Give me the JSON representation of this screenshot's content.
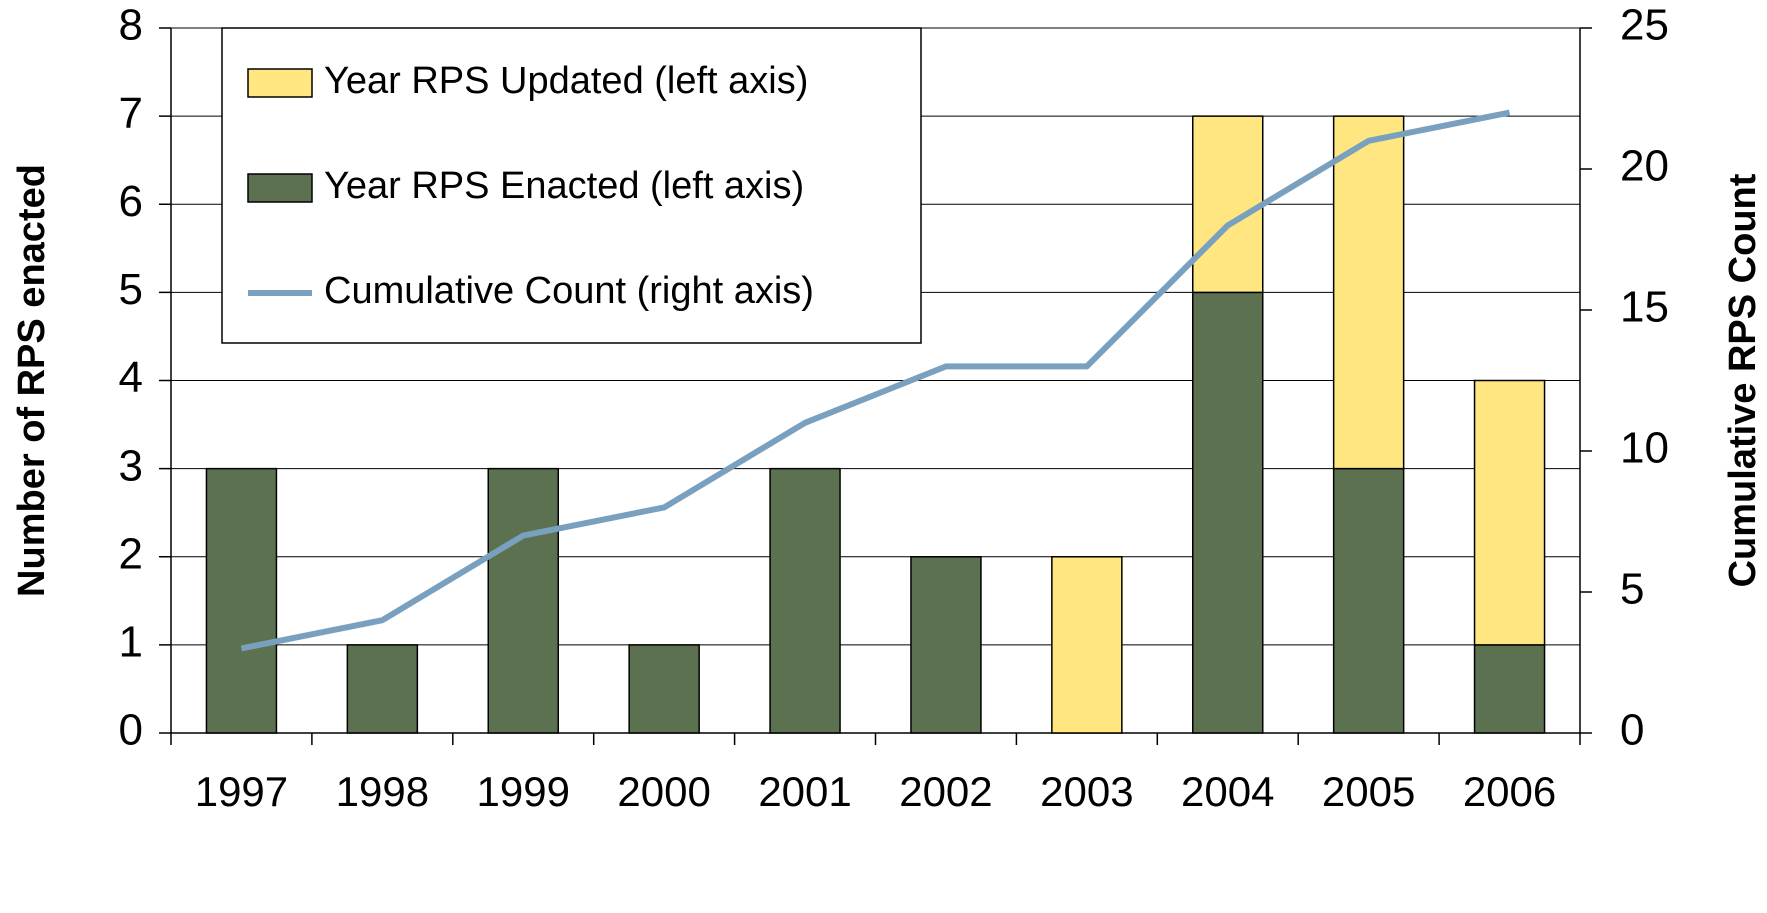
{
  "chart_data": {
    "type": "bar",
    "ylabel": "Number of RPS enacted",
    "y2label": "Cumulative RPS Count",
    "categories": [
      "1997",
      "1998",
      "1999",
      "2000",
      "2001",
      "2002",
      "2003",
      "2004",
      "2005",
      "2006"
    ],
    "series": [
      {
        "name": "Year RPS Updated (left axis)",
        "color": "#ffe680",
        "values": [
          0,
          0,
          0,
          0,
          0,
          0,
          2,
          2,
          4,
          3
        ]
      },
      {
        "name": "Year RPS Enacted (left axis)",
        "color": "#5c7150",
        "values": [
          3,
          1,
          3,
          1,
          3,
          2,
          0,
          5,
          3,
          1
        ]
      },
      {
        "name": "Cumulative Count (right axis)",
        "type": "line",
        "axis": "y2",
        "color": "#7aa0c0",
        "values": [
          3,
          4,
          7,
          8,
          11,
          13,
          13,
          18,
          21,
          22
        ]
      }
    ],
    "stacked": true,
    "ylim": [
      0,
      8
    ],
    "yticks": [
      0,
      1,
      2,
      3,
      4,
      5,
      6,
      7,
      8
    ],
    "y2lim": [
      0,
      25
    ],
    "y2ticks": [
      0,
      5,
      10,
      15,
      20,
      25
    ],
    "grid": true,
    "legend": "upper left"
  }
}
